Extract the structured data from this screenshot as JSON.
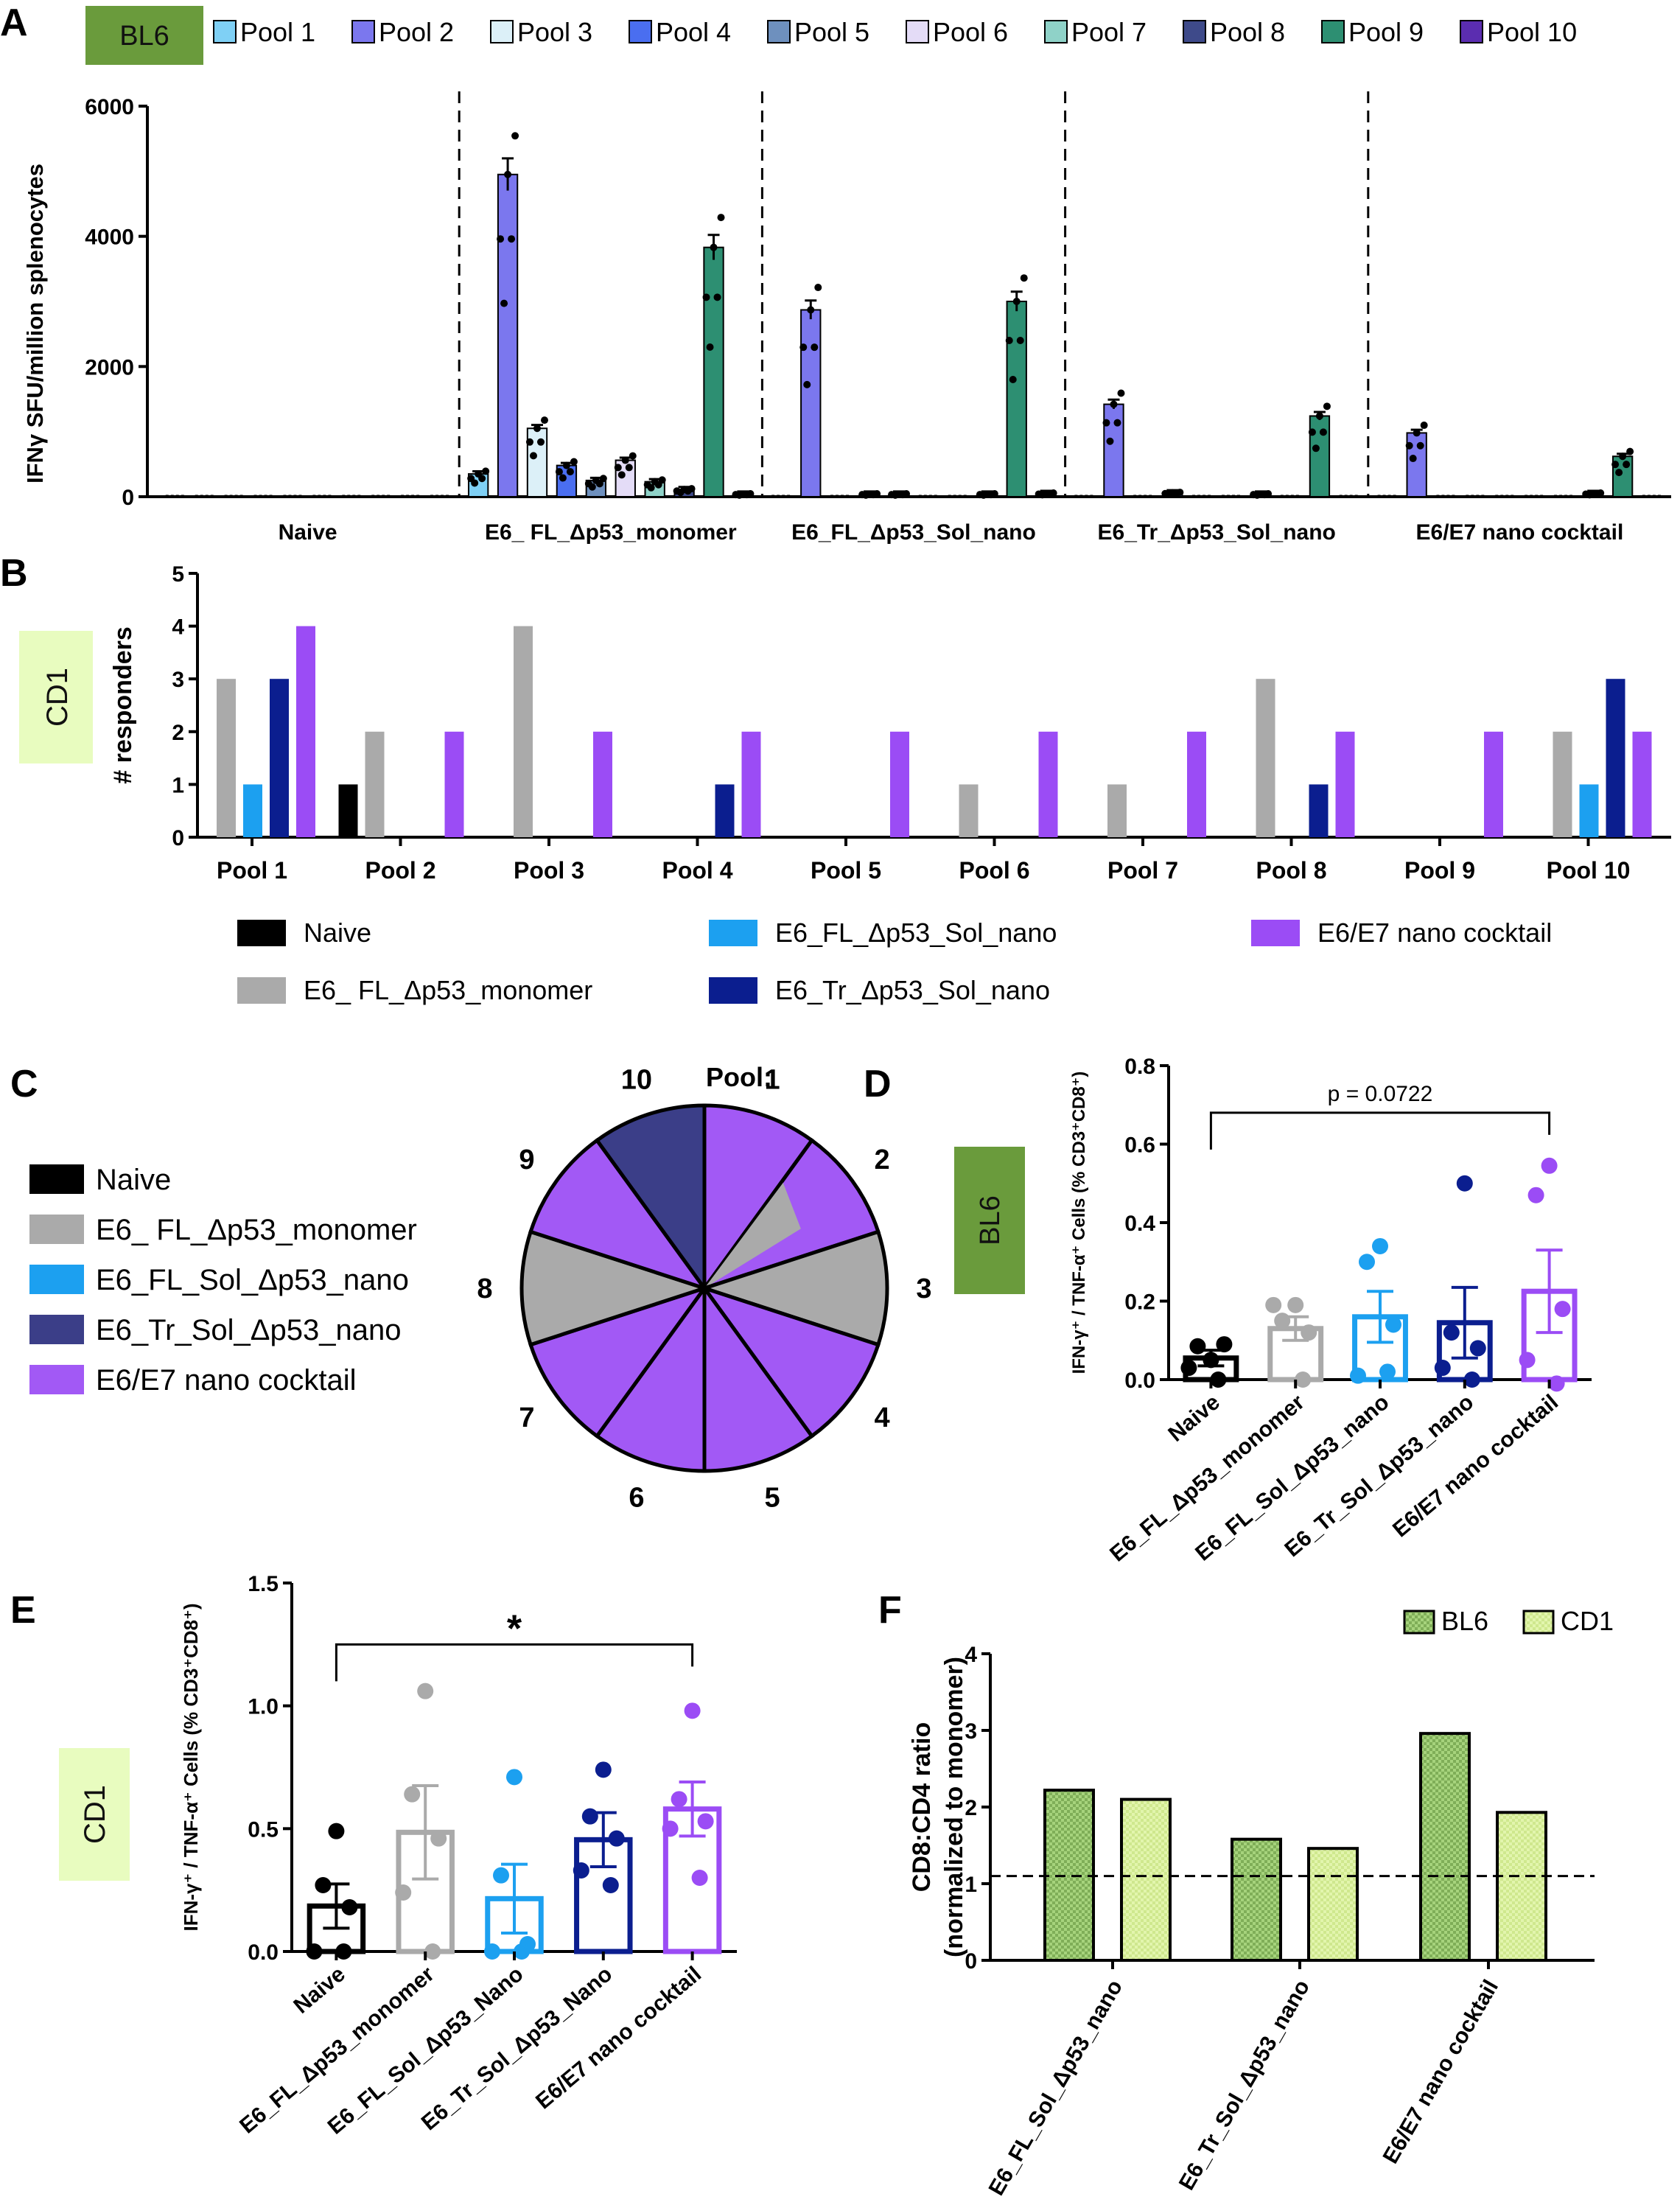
{
  "panels": {
    "A": {
      "letter": "A",
      "strain": "BL6"
    },
    "B": {
      "letter": "B",
      "strain": "CD1"
    },
    "C": {
      "letter": "C",
      "pool_title": "Pool:"
    },
    "D": {
      "letter": "D",
      "strain": "BL6"
    },
    "E": {
      "letter": "E",
      "strain": "CD1"
    },
    "F": {
      "letter": "F"
    }
  },
  "chart_data": [
    {
      "id": "A",
      "type": "bar",
      "ylabel": "IFNγ SFU/million splenocytes",
      "ylim": [
        0,
        6000
      ],
      "yticks": [
        0,
        2000,
        4000,
        6000
      ],
      "groups": [
        "Naive",
        "E6_ FL_Δp53_monomer",
        "E6_FL_Δp53_Sol_nano",
        "E6_Tr_Δp53_Sol_nano",
        "E6/E7 nano cocktail"
      ],
      "series": [
        {
          "name": "Pool 1",
          "color": "#7fd0f5",
          "values": [
            0,
            350,
            0,
            0,
            0
          ]
        },
        {
          "name": "Pool 2",
          "color": "#7b77ee",
          "values": [
            0,
            4950,
            2870,
            1420,
            980
          ]
        },
        {
          "name": "Pool 3",
          "color": "#dcf0f8",
          "values": [
            0,
            1050,
            0,
            0,
            0
          ]
        },
        {
          "name": "Pool 4",
          "color": "#4a6ef0",
          "values": [
            0,
            480,
            40,
            60,
            0
          ]
        },
        {
          "name": "Pool 5",
          "color": "#6e90be",
          "values": [
            0,
            250,
            40,
            0,
            0
          ]
        },
        {
          "name": "Pool 6",
          "color": "#e4dcf7",
          "values": [
            0,
            560,
            0,
            0,
            0
          ]
        },
        {
          "name": "Pool 7",
          "color": "#8fd2c8",
          "values": [
            0,
            230,
            0,
            40,
            0
          ]
        },
        {
          "name": "Pool 8",
          "color": "#3e4a8a",
          "values": [
            0,
            110,
            40,
            0,
            50
          ]
        },
        {
          "name": "Pool 9",
          "color": "#2d8f72",
          "values": [
            0,
            3830,
            3000,
            1240,
            620
          ]
        },
        {
          "name": "Pool 10",
          "color": "#5b2db0",
          "values": [
            0,
            40,
            50,
            0,
            0
          ]
        }
      ]
    },
    {
      "id": "B",
      "type": "bar",
      "ylabel": "# responders",
      "ylim": [
        0,
        5
      ],
      "yticks": [
        0,
        1,
        2,
        3,
        4,
        5
      ],
      "categories": [
        "Pool 1",
        "Pool 2",
        "Pool 3",
        "Pool 4",
        "Pool 5",
        "Pool 6",
        "Pool 7",
        "Pool 8",
        "Pool 9",
        "Pool 10"
      ],
      "series": [
        {
          "name": "Naive",
          "color": "#000000",
          "values": [
            0,
            1,
            0,
            0,
            0,
            0,
            0,
            0,
            0,
            0
          ]
        },
        {
          "name": "E6_ FL_Δp53_monomer",
          "color": "#aaaaaa",
          "values": [
            3,
            2,
            4,
            0,
            0,
            1,
            1,
            3,
            0,
            2
          ]
        },
        {
          "name": "E6_FL_Δp53_Sol_nano",
          "color": "#1ca0f0",
          "values": [
            1,
            0,
            0,
            0,
            0,
            0,
            0,
            0,
            0,
            1
          ]
        },
        {
          "name": "E6_Tr_Δp53_Sol_nano",
          "color": "#0b1e8f",
          "values": [
            3,
            0,
            0,
            1,
            0,
            0,
            0,
            1,
            0,
            3
          ]
        },
        {
          "name": "E6/E7 nano cocktail",
          "color": "#9b4cf5",
          "values": [
            4,
            2,
            2,
            2,
            2,
            2,
            2,
            2,
            2,
            2
          ]
        }
      ]
    },
    {
      "id": "C",
      "type": "pie",
      "legend": [
        {
          "name": "Naive",
          "color": "#000000"
        },
        {
          "name": "E6_ FL_Δp53_monomer",
          "color": "#aaaaaa"
        },
        {
          "name": "E6_FL_Sol_Δp53_nano",
          "color": "#1ca0f0"
        },
        {
          "name": "E6_Tr_Sol_Δp53_nano",
          "color": "#3b3e88"
        },
        {
          "name": "E6/E7 nano cocktail",
          "color": "#a259f5"
        }
      ],
      "slices": [
        {
          "pool": "1",
          "value": 1,
          "color": "#a259f5"
        },
        {
          "pool": "2",
          "value": 1,
          "color": "#a259f5",
          "inner_wedge": "#aaaaaa"
        },
        {
          "pool": "3",
          "value": 1,
          "color": "#aaaaaa"
        },
        {
          "pool": "4",
          "value": 1,
          "color": "#a259f5"
        },
        {
          "pool": "5",
          "value": 1,
          "color": "#a259f5"
        },
        {
          "pool": "6",
          "value": 1,
          "color": "#a259f5"
        },
        {
          "pool": "7",
          "value": 1,
          "color": "#a259f5"
        },
        {
          "pool": "8",
          "value": 1,
          "color": "#aaaaaa"
        },
        {
          "pool": "9",
          "value": 1,
          "color": "#a259f5"
        },
        {
          "pool": "10",
          "value": 1,
          "color": "#3b3e88"
        }
      ]
    },
    {
      "id": "D",
      "type": "bar",
      "ylabel": "IFN-γ⁺ / TNF-α⁺ Cells (% CD3⁺CD8⁺)",
      "ylim": [
        0,
        0.8
      ],
      "yticks": [
        0.0,
        0.2,
        0.4,
        0.6,
        0.8
      ],
      "categories": [
        "Naive",
        "E6_FL_Δp53_monomer",
        "E6_FL_Sol_Δp53_nano",
        "E6_Tr_Sol_Δp53_nano",
        "E6/E7 nano cocktail"
      ],
      "colors": [
        "#000000",
        "#aaaaaa",
        "#1ca0f0",
        "#0b1e8f",
        "#9b4cf5"
      ],
      "values": [
        0.055,
        0.13,
        0.16,
        0.145,
        0.225
      ],
      "sem": [
        0.02,
        0.03,
        0.065,
        0.09,
        0.105
      ],
      "points": [
        [
          0.05,
          0.085,
          0.09,
          0.03,
          0.0
        ],
        [
          0.19,
          0.15,
          0.12,
          0.19,
          0.0
        ],
        [
          0.34,
          0.3,
          0.14,
          0.01,
          0.02
        ],
        [
          0.5,
          0.12,
          0.08,
          0.03,
          0.0
        ],
        [
          0.545,
          0.47,
          0.18,
          0.05,
          -0.01
        ]
      ],
      "comparison": {
        "from": 0,
        "to": 4,
        "label": "p = 0.0722",
        "y": 0.68
      }
    },
    {
      "id": "E",
      "type": "bar",
      "ylabel": "IFN-γ⁺ / TNF-α⁺ Cells (% CD3⁺CD8⁺)",
      "ylim": [
        0,
        1.5
      ],
      "yticks": [
        0.0,
        0.5,
        1.0,
        1.5
      ],
      "categories": [
        "Naive",
        "E6_FL_Δp53_monomer",
        "E6_FL_Sol_Δp53_Nano",
        "E6_Tr_Sol_Δp53_Nano",
        "E6/E7 nano cocktail"
      ],
      "colors": [
        "#000000",
        "#aaaaaa",
        "#1ca0f0",
        "#0b1e8f",
        "#9b4cf5"
      ],
      "values": [
        0.185,
        0.485,
        0.215,
        0.455,
        0.58
      ],
      "sem": [
        0.09,
        0.19,
        0.14,
        0.11,
        0.11
      ],
      "points": [
        [
          0.49,
          0.27,
          0.18,
          0.0,
          0.0
        ],
        [
          1.06,
          0.64,
          0.46,
          0.24,
          0.0
        ],
        [
          0.71,
          0.31,
          0.03,
          0.0,
          0.0
        ],
        [
          0.74,
          0.55,
          0.46,
          0.33,
          0.27
        ],
        [
          0.98,
          0.62,
          0.53,
          0.5,
          0.3
        ]
      ],
      "comparison": {
        "from": 0,
        "to": 4,
        "label": "*",
        "y": 1.25
      }
    },
    {
      "id": "F",
      "type": "bar",
      "ylabel": "CD8:CD4 ratio",
      "ylabel2": "(normalized to monomer)",
      "ylim": [
        0,
        4
      ],
      "yticks": [
        0,
        1,
        2,
        3,
        4
      ],
      "categories": [
        "E6_FL_Sol_Δp53_nano",
        "E6_Tr_Sol_Δp53_nano",
        "E6/E7 nano cocktail"
      ],
      "series": [
        {
          "name": "BL6",
          "color": "#a6d37c",
          "values": [
            2.22,
            1.58,
            2.96
          ]
        },
        {
          "name": "CD1",
          "color": "#e2f5ad",
          "values": [
            2.1,
            1.46,
            1.93
          ]
        }
      ],
      "reference_line": 1.1
    }
  ]
}
